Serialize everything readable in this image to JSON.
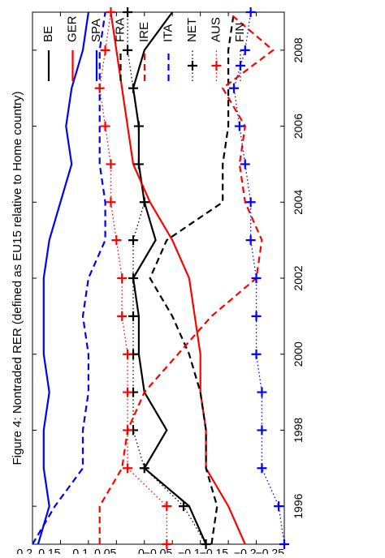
{
  "chart_data": {
    "type": "line",
    "title": "Figure 4: Nontraded RER (defined as EU15 relative to Home country)",
    "xlabel": "",
    "ylabel": "",
    "xlim": [
      1995,
      2009
    ],
    "ylim": [
      -0.25,
      0.2
    ],
    "x_ticks": [
      1996,
      1998,
      2000,
      2002,
      2004,
      2006,
      2008
    ],
    "x_tick_labels": [
      "1996",
      "1998",
      "2000",
      "2002",
      "2004",
      "2006",
      "2008"
    ],
    "y_ticks": [
      0.2,
      0.15,
      0.1,
      0.05,
      0,
      -0.05,
      -0.1,
      -0.15,
      -0.2,
      -0.25
    ],
    "y_tick_labels": [
      "0.2",
      "0.15",
      "0.1",
      "0.05",
      "0",
      "−0.05",
      "−0.1",
      "−0.15",
      "−0.2",
      "−0.25"
    ],
    "orientation": "rotated 90 degrees counter-clockwise",
    "grid": false,
    "legend_position": "top, horizontal",
    "x": [
      1995,
      1996,
      1997,
      1998,
      1999,
      2000,
      2001,
      2002,
      2003,
      2004,
      2005,
      2006,
      2007,
      2008,
      2009
    ],
    "series": [
      {
        "name": "BE",
        "color": "#000000",
        "dash": "solid",
        "marker": "none",
        "values": [
          -0.11,
          -0.08,
          0.0,
          -0.04,
          0.0,
          0.01,
          0.01,
          0.02,
          -0.02,
          0.0,
          0.01,
          0.01,
          0.02,
          0.0,
          -0.05
        ]
      },
      {
        "name": "GER",
        "color": "#ff0000",
        "dash": "solid",
        "marker": "none",
        "values": [
          -0.18,
          -0.15,
          -0.11,
          -0.11,
          -0.1,
          -0.1,
          -0.09,
          -0.08,
          -0.05,
          -0.01,
          0.02,
          0.03,
          0.04,
          0.05,
          0.06
        ]
      },
      {
        "name": "SPA",
        "color": "#0000ff",
        "dash": "solid",
        "marker": "none",
        "values": [
          0.19,
          0.17,
          0.18,
          0.18,
          0.17,
          0.18,
          0.18,
          0.18,
          0.17,
          0.15,
          0.13,
          0.14,
          0.13,
          0.11,
          0.1
        ]
      },
      {
        "name": "FRA",
        "color": "#000000",
        "dash": "dashed",
        "marker": "none",
        "values": [
          -0.12,
          -0.13,
          -0.11,
          -0.11,
          -0.1,
          -0.08,
          -0.05,
          -0.01,
          -0.04,
          -0.14,
          -0.14,
          -0.15,
          -0.15,
          -0.15,
          -0.16
        ]
      },
      {
        "name": "IRE",
        "color": "#ff0000",
        "dash": "dashed",
        "marker": "none",
        "values": [
          0.08,
          0.08,
          0.04,
          0.03,
          0.0,
          -0.06,
          -0.12,
          -0.2,
          -0.21,
          -0.18,
          -0.17,
          -0.18,
          -0.14,
          -0.23,
          -0.15
        ]
      },
      {
        "name": "ITA",
        "color": "#0000ff",
        "dash": "dashed",
        "marker": "none",
        "values": [
          0.2,
          0.16,
          0.11,
          0.11,
          0.1,
          0.1,
          0.11,
          0.1,
          0.07,
          0.07,
          0.08,
          0.08,
          0.08,
          0.08,
          0.07
        ]
      },
      {
        "name": "NET",
        "color": "#000000",
        "dash": "dotted",
        "marker": "plus",
        "values": [
          -0.11,
          -0.07,
          0.0,
          0.02,
          0.02,
          0.02,
          0.02,
          0.02,
          0.02,
          0.0,
          0.01,
          0.01,
          0.02,
          0.03,
          0.03
        ]
      },
      {
        "name": "AUS",
        "color": "#ff0000",
        "dash": "dotted",
        "marker": "plus",
        "values": [
          -0.04,
          -0.04,
          0.03,
          0.03,
          0.03,
          0.03,
          0.04,
          0.04,
          0.05,
          0.06,
          0.06,
          0.07,
          0.08,
          0.07,
          0.06
        ]
      },
      {
        "name": "FIN",
        "color": "#0000ff",
        "dash": "dotted",
        "marker": "plus",
        "values": [
          -0.25,
          -0.24,
          -0.21,
          -0.21,
          -0.21,
          -0.2,
          -0.2,
          -0.2,
          -0.19,
          -0.19,
          -0.18,
          -0.17,
          -0.16,
          -0.18,
          -0.19
        ]
      }
    ]
  }
}
